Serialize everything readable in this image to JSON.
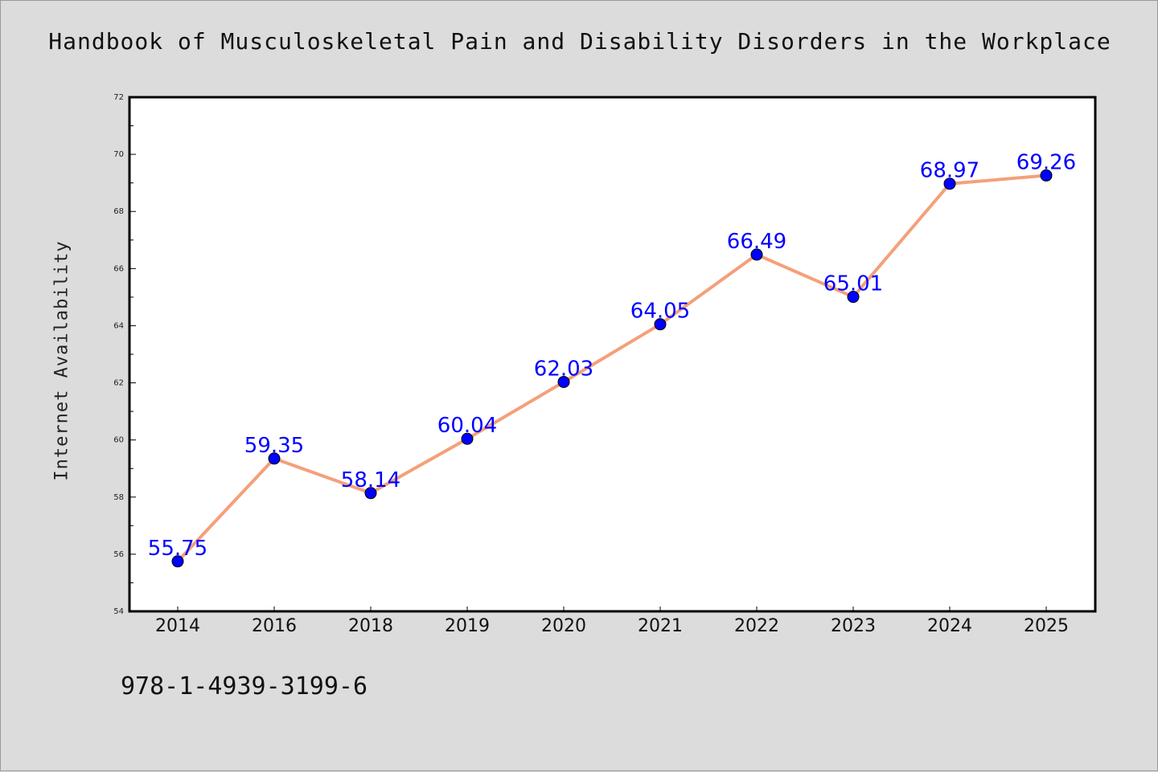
{
  "chart_data": {
    "type": "line",
    "title": "Handbook of Musculoskeletal Pain and Disability Disorders in the Workplace",
    "ylabel": "Internet Availability",
    "xlabel": "",
    "categories": [
      "2014",
      "2016",
      "2018",
      "2019",
      "2020",
      "2021",
      "2022",
      "2023",
      "2024",
      "2025"
    ],
    "series": [
      {
        "values": [
          55.75,
          59.35,
          58.14,
          60.04,
          62.03,
          64.05,
          66.49,
          65.01,
          68.97,
          69.26
        ],
        "labels": [
          "55.75",
          "59.35",
          "58.14",
          "60.04",
          "62.03",
          "64.05",
          "66.49",
          "65.01",
          "68.97",
          "69.26"
        ],
        "line_color": "#f4a07a",
        "marker_color": "#0000ff"
      }
    ],
    "ylim": [
      54,
      72
    ],
    "yticks": [
      "54",
      "56",
      "58",
      "60",
      "62",
      "64",
      "66",
      "68",
      "70",
      "72"
    ],
    "grid": false,
    "label_color": "#0000ff",
    "background": "#dcdcdc",
    "plot_background": "#ffffff"
  },
  "footer": {
    "isbn": "978-1-4939-3199-6"
  }
}
